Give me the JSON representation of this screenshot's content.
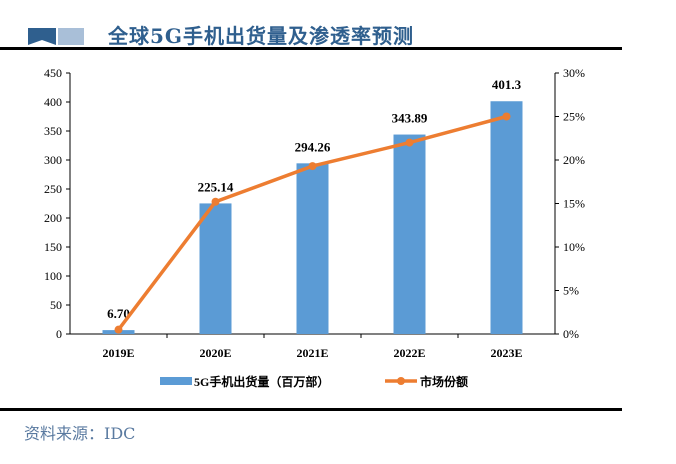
{
  "header": {
    "title": "全球5G手机出货量及渗透率预测"
  },
  "footer": {
    "source": "资料来源：IDC"
  },
  "colors": {
    "bar": "#5b9bd5",
    "line": "#ed7d31",
    "title": "#2f5f8e"
  },
  "chart_data": {
    "type": "bar+line",
    "categories": [
      "2019E",
      "2020E",
      "2021E",
      "2022E",
      "2023E"
    ],
    "series": [
      {
        "name": "5G手机出货量（百万部）",
        "type": "bar",
        "axis": "left",
        "values": [
          6.7,
          225.14,
          294.26,
          343.89,
          401.3
        ],
        "labels": [
          "6.70",
          "225.14",
          "294.26",
          "343.89",
          "401.3"
        ]
      },
      {
        "name": "市场份额",
        "type": "line",
        "axis": "right",
        "values": [
          0.5,
          15.2,
          19.3,
          22.0,
          25.0
        ]
      }
    ],
    "left_axis": {
      "min": 0,
      "max": 450,
      "ticks": [
        "0",
        "50",
        "100",
        "150",
        "200",
        "250",
        "300",
        "350",
        "400",
        "450"
      ]
    },
    "right_axis": {
      "min": 0,
      "max": 30,
      "ticks": [
        "0%",
        "5%",
        "10%",
        "15%",
        "20%",
        "25%",
        "30%"
      ]
    },
    "grid": false,
    "legend": "bottom"
  }
}
